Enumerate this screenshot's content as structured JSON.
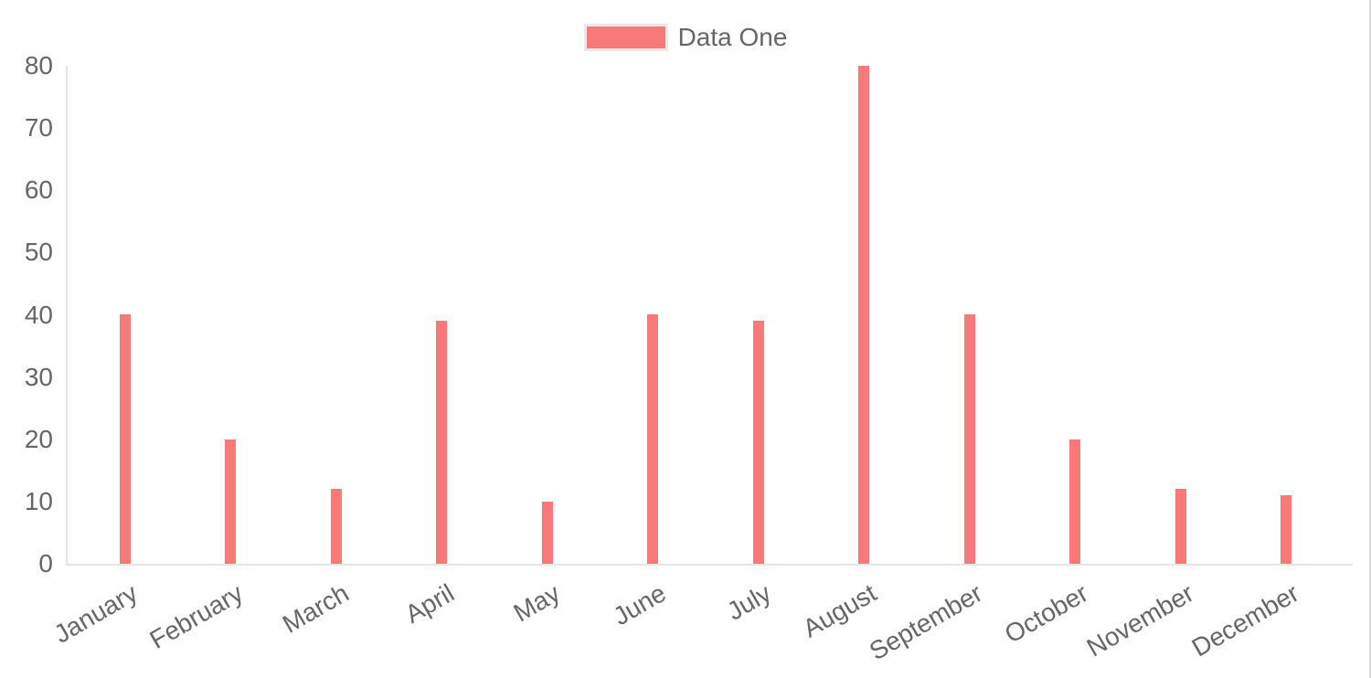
{
  "legend": {
    "label": "Data One",
    "swatch_color": "#f87979",
    "swatch_border_color": "#e9e9e9"
  },
  "chart_data": {
    "type": "bar",
    "title": "",
    "xlabel": "",
    "ylabel": "",
    "categories": [
      "January",
      "February",
      "March",
      "April",
      "May",
      "June",
      "July",
      "August",
      "September",
      "October",
      "November",
      "December"
    ],
    "series": [
      {
        "name": "Data One",
        "values": [
          40,
          20,
          12,
          39,
          10,
          40,
          39,
          80,
          40,
          20,
          12,
          11
        ]
      }
    ],
    "ylim": [
      0,
      80
    ],
    "y_ticks": [
      0,
      10,
      20,
      30,
      40,
      50,
      60,
      70,
      80
    ],
    "x_label_rotation_deg": -30,
    "grid": false,
    "legend_position": "top",
    "colors": {
      "bar": "#f87979",
      "axis_line": "#e6e6e6",
      "tick_text": "#666666",
      "page_edge_line": "#dcdcdc"
    }
  }
}
